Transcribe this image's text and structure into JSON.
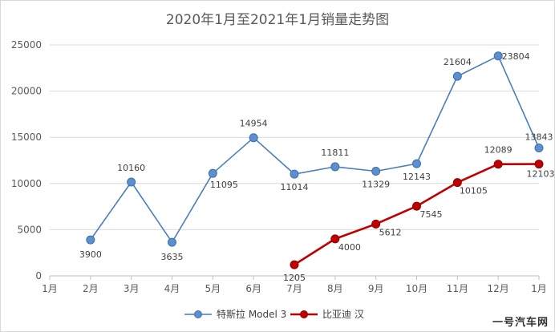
{
  "chart_data": {
    "type": "line",
    "title": "2020年1月至2021年1月销量走势图",
    "xlabel": "",
    "ylabel": "",
    "categories": [
      "1月",
      "2月",
      "3月",
      "4月",
      "5月",
      "6月",
      "7月",
      "8月",
      "9月",
      "10月",
      "11月",
      "12月",
      "1月"
    ],
    "ylim": [
      0,
      25000
    ],
    "yticks": [
      0,
      5000,
      10000,
      15000,
      20000,
      25000
    ],
    "grid": true,
    "legend_position": "bottom",
    "series": [
      {
        "name": "特斯拉 Model 3",
        "color": "#4a7eba",
        "values": [
          null,
          3900,
          10160,
          3635,
          11095,
          14954,
          11014,
          11811,
          11329,
          12143,
          21604,
          23804,
          13843
        ],
        "labels": [
          null,
          "3900",
          "10160",
          "3635",
          "11095",
          "14954",
          "11014",
          "11811",
          "11329",
          "12143",
          "21604",
          "23804",
          "13843"
        ]
      },
      {
        "name": "比亚迪 汉",
        "color": "#c00000",
        "values": [
          null,
          null,
          null,
          null,
          null,
          null,
          1205,
          4000,
          5612,
          7545,
          10105,
          12089,
          12103
        ],
        "labels": [
          null,
          null,
          null,
          null,
          null,
          null,
          "1205",
          "4000",
          "5612",
          "7545",
          "10105",
          "12089",
          "12103"
        ]
      }
    ]
  },
  "watermark": "一号汽车网"
}
